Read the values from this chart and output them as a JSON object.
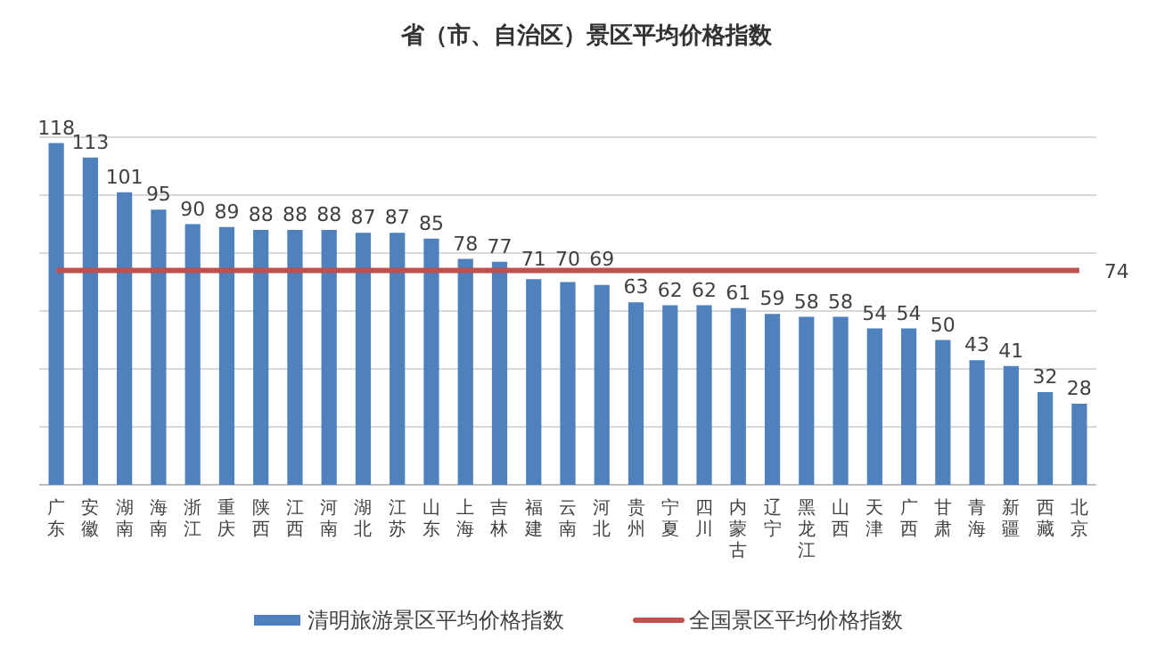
{
  "chart_data": {
    "type": "bar",
    "title": "省（市、自治区）景区平均价格指数",
    "categories": [
      "广东",
      "安徽",
      "湖南",
      "海南",
      "浙江",
      "重庆",
      "陕西",
      "江西",
      "河南",
      "湖北",
      "江苏",
      "山东",
      "上海",
      "吉林",
      "福建",
      "云南",
      "河北",
      "贵州",
      "宁夏",
      "四川",
      "内蒙古",
      "辽宁",
      "黑龙江",
      "山西",
      "天津",
      "广西",
      "甘肃",
      "青海",
      "新疆",
      "西藏",
      "北京"
    ],
    "series": [
      {
        "name": "清明旅游景区平均价格指数",
        "color": "#4f81bd",
        "values": [
          118,
          113,
          101,
          95,
          90,
          89,
          88,
          88,
          88,
          87,
          87,
          85,
          78,
          77,
          71,
          70,
          69,
          63,
          62,
          62,
          61,
          59,
          58,
          58,
          54,
          54,
          50,
          43,
          41,
          32,
          28
        ],
        "value_labels": [
          "118",
          "113",
          "101",
          "95",
          "90",
          "89",
          "88",
          "88",
          "88",
          "87",
          "87",
          "85",
          "78",
          "77",
          "71",
          "70",
          "69",
          "63",
          "62",
          "62",
          "61",
          "59",
          "58",
          "58",
          "54",
          "54",
          "50",
          "43",
          "41",
          "32",
          "28"
        ]
      },
      {
        "name": "全国景区平均价格指数",
        "type": "line",
        "color": "#c0504d",
        "values": [
          74,
          74,
          74,
          74,
          74,
          74,
          74,
          74,
          74,
          74,
          74,
          74,
          74,
          74,
          74,
          74,
          74,
          74,
          74,
          74,
          74,
          74,
          74,
          74,
          74,
          74,
          74,
          74,
          74,
          74,
          74
        ],
        "value_labels": [
          null,
          null,
          null,
          null,
          null,
          null,
          null,
          null,
          null,
          null,
          null,
          null,
          null,
          null,
          null,
          null,
          null,
          null,
          null,
          null,
          null,
          null,
          null,
          null,
          null,
          null,
          null,
          null,
          null,
          null,
          "74"
        ]
      }
    ],
    "ylim": [
      0,
      120
    ],
    "yticks": [
      {
        "value": 0,
        "label": null
      },
      {
        "value": 20,
        "label": null
      },
      {
        "value": 40,
        "label": null
      },
      {
        "value": 60,
        "label": null
      },
      {
        "value": 80,
        "label": null
      },
      {
        "value": 100,
        "label": null
      },
      {
        "value": 120,
        "label": null
      }
    ],
    "tick_labels": "x",
    "grid": "y",
    "legend": "bottom",
    "line_style": "solid",
    "marker": "none"
  }
}
